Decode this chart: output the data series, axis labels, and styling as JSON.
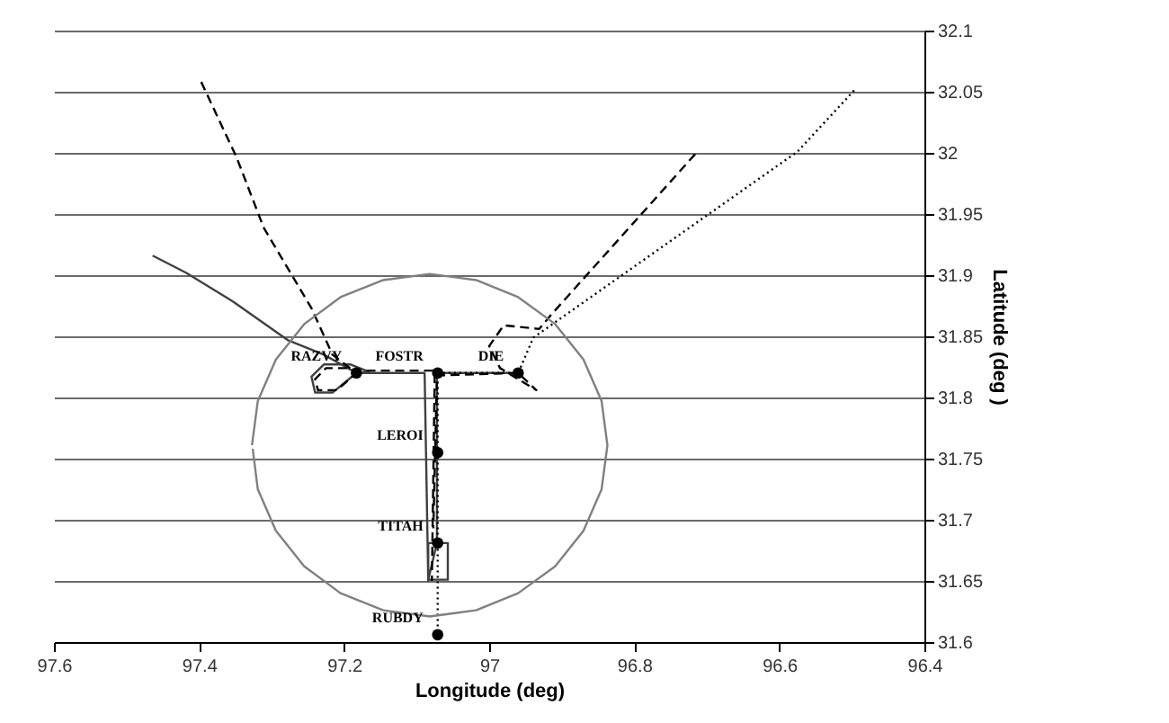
{
  "chart_data": {
    "type": "line",
    "xlabel": "Longitude (deg)",
    "ylabel": "Latitude (deg )",
    "xlim": [
      97.6,
      96.4
    ],
    "xticks": [
      97.6,
      97.4,
      97.2,
      97,
      96.8,
      96.6,
      96.4
    ],
    "ylim": [
      31.6,
      32.1
    ],
    "yticks": [
      31.6,
      31.65,
      31.7,
      31.75,
      31.8,
      31.85,
      31.9,
      31.95,
      32,
      32.05,
      32.1
    ],
    "grid": "y",
    "series": [
      {
        "type": "line",
        "color": "#404040",
        "line_style": "solid",
        "x": [
          97.464,
          97.418,
          97.352,
          97.278,
          97.228,
          97.183,
          97.216,
          97.24,
          97.245,
          97.228,
          97.191,
          97.166,
          97.183,
          97.089,
          97.084,
          97.084,
          97.057,
          97.057,
          97.084,
          97.072,
          97.072,
          96.96
        ],
        "values": [
          31.916,
          31.902,
          31.878,
          31.847,
          31.835,
          31.82,
          31.804,
          31.804,
          31.817,
          31.827,
          31.827,
          31.821,
          31.82,
          31.82,
          31.65,
          31.681,
          31.681,
          31.651,
          31.651,
          31.681,
          31.82,
          31.82
        ]
      },
      {
        "type": "line",
        "color": "#000000",
        "line_style": "dotted",
        "x": [
          96.497,
          96.575,
          96.939,
          96.96,
          97.071,
          97.071
        ],
        "values": [
          32.051,
          32.001,
          31.849,
          31.82,
          31.82,
          31.606
        ]
      },
      {
        "type": "line",
        "color": "#000000",
        "line_style": "dashed",
        "x": [
          96.716,
          96.914,
          96.931,
          96.98,
          97.0,
          96.985,
          96.935,
          96.96,
          97.072,
          97.077
        ],
        "values": [
          31.999,
          31.868,
          31.856,
          31.859,
          31.842,
          31.824,
          31.806,
          31.82,
          31.818,
          31.693
        ]
      },
      {
        "type": "line",
        "color": "#000000",
        "line_style": "dashed",
        "x": [
          97.397,
          97.348,
          97.311,
          97.245,
          97.216,
          97.183,
          97.21,
          97.236,
          97.24,
          97.225,
          97.195,
          97.183,
          97.075,
          97.079
        ],
        "values": [
          32.058,
          31.996,
          31.939,
          31.873,
          31.835,
          31.82,
          31.806,
          31.806,
          31.815,
          31.824,
          31.824,
          31.822,
          31.822,
          31.65
        ]
      },
      {
        "type": "line",
        "color": "#808080",
        "line_style": "solid",
        "x": [
          97.327,
          97.319,
          97.294,
          97.255,
          97.205,
          97.146,
          97.082,
          97.018,
          96.96,
          96.909,
          96.87,
          96.845,
          96.837,
          96.845,
          96.87,
          96.909,
          96.96,
          97.018,
          97.082,
          97.146,
          97.205,
          97.255,
          97.294,
          97.319,
          97.326
        ],
        "values": [
          31.761,
          31.797,
          31.831,
          31.86,
          31.882,
          31.896,
          31.901,
          31.896,
          31.882,
          31.86,
          31.831,
          31.797,
          31.761,
          31.725,
          31.691,
          31.662,
          31.64,
          31.626,
          31.621,
          31.626,
          31.64,
          31.662,
          31.691,
          31.725,
          31.758
        ]
      },
      {
        "type": "scatter",
        "color": "#000000",
        "marker": "circle",
        "x": [
          97.183,
          97.071,
          96.96,
          97.071,
          97.071,
          97.071
        ],
        "values": [
          31.82,
          31.82,
          31.82,
          31.755,
          31.681,
          31.606
        ]
      }
    ],
    "annotations": [
      {
        "text": "RAZVY",
        "x": 97.183,
        "y": 31.82
      },
      {
        "text": "FOSTR",
        "x": 97.071,
        "y": 31.82
      },
      {
        "text": "DIE",
        "x": 96.96,
        "y": 31.82
      },
      {
        "text": "LEROI",
        "x": 97.071,
        "y": 31.755
      },
      {
        "text": "TITAH",
        "x": 97.071,
        "y": 31.681
      },
      {
        "text": "RUBDY",
        "x": 97.071,
        "y": 31.606
      }
    ]
  }
}
